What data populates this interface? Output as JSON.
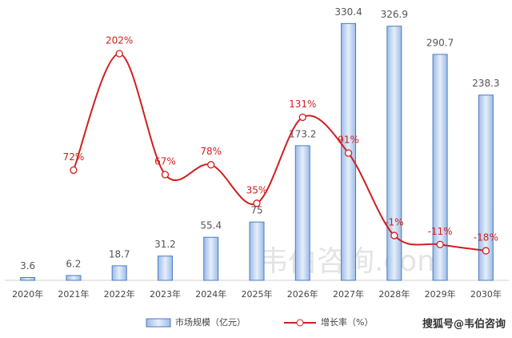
{
  "chart_data": {
    "type": "bar-line",
    "categories": [
      "2020年",
      "2021年",
      "2022年",
      "2023年",
      "2024年",
      "2025年",
      "2026年",
      "2027年",
      "2028年",
      "2029年",
      "2030年"
    ],
    "series": [
      {
        "name": "市场规模（亿元）",
        "type": "bar",
        "color": "#4a7cc4",
        "values": [
          3.6,
          6.2,
          18.7,
          31.2,
          55.4,
          75,
          173.2,
          330.4,
          326.9,
          290.7,
          238.3
        ]
      },
      {
        "name": "增长率（%）",
        "type": "line",
        "axis": "y2",
        "color": "#d11f1f",
        "values": [
          null,
          72,
          202,
          67,
          78,
          35,
          131,
          91,
          -1,
          -11,
          -18
        ],
        "value_labels": [
          null,
          "72%",
          "202%",
          "67%",
          "78%",
          "35%",
          "131%",
          "91%",
          "-1%",
          "-11%",
          "-18%"
        ]
      }
    ],
    "ylim": [
      0,
      340
    ],
    "y2lim": [
      -51,
      244
    ],
    "watermark": "韦伯咨询.com",
    "source": "搜狐号@韦伯咨询"
  }
}
